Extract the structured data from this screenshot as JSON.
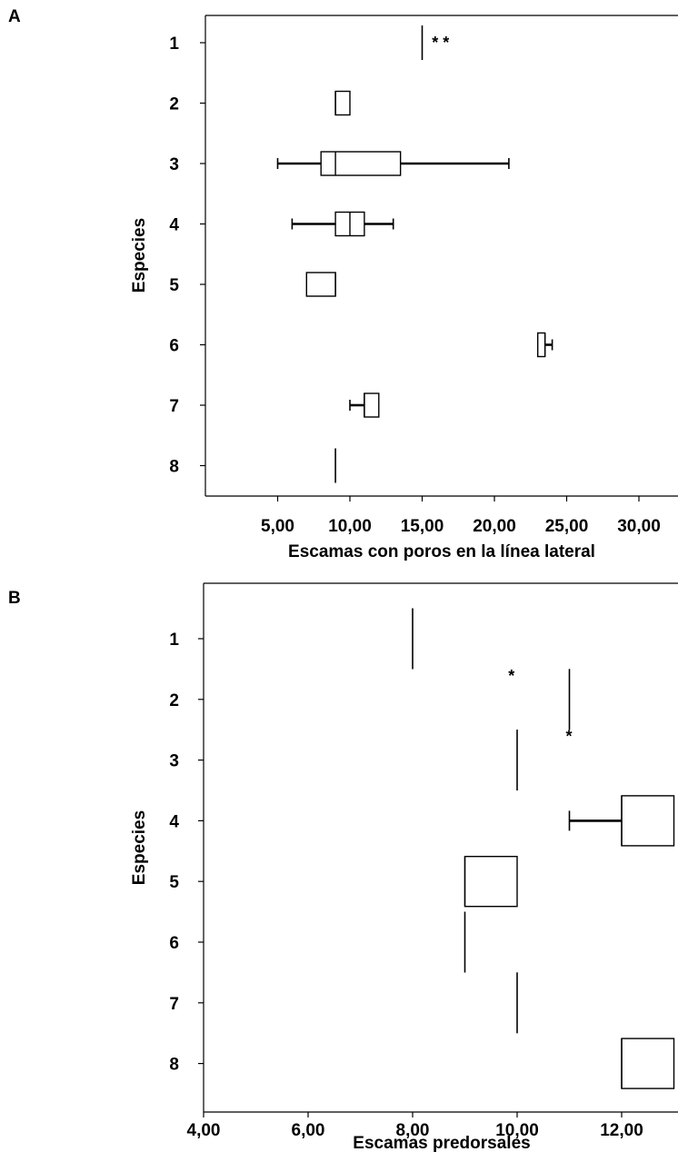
{
  "chart_data": [
    {
      "panel": "A",
      "type": "boxplot",
      "orientation": "horizontal",
      "xlabel": "Escamas con poros en la línea lateral",
      "ylabel": "Especies",
      "categories": [
        "1",
        "2",
        "3",
        "4",
        "5",
        "6",
        "7",
        "8"
      ],
      "x_ticks": [
        "5,00",
        "10,00",
        "15,00",
        "20,00",
        "25,00",
        "30,00"
      ],
      "xlim": [
        0,
        32
      ],
      "boxes": [
        {
          "species": "1",
          "min": 15,
          "q1": 15,
          "median": 15,
          "q3": 15,
          "max": 15
        },
        {
          "species": "2",
          "min": 9,
          "q1": 9,
          "median": 9,
          "q3": 10,
          "max": 10
        },
        {
          "species": "3",
          "min": 5,
          "q1": 8,
          "median": 9,
          "q3": 13.5,
          "max": 21
        },
        {
          "species": "4",
          "min": 6,
          "q1": 9,
          "median": 10,
          "q3": 11,
          "max": 13
        },
        {
          "species": "5",
          "min": 7,
          "q1": 7,
          "median": 9,
          "q3": 9,
          "max": 9
        },
        {
          "species": "6",
          "min": 23,
          "q1": 23,
          "median": 23.5,
          "q3": 23.5,
          "max": 24
        },
        {
          "species": "7",
          "min": 10,
          "q1": 11,
          "median": 11,
          "q3": 12,
          "max": 12
        },
        {
          "species": "8",
          "min": 9,
          "q1": 9,
          "median": 9,
          "q3": 9,
          "max": 9
        }
      ],
      "annotations": [
        {
          "text": "* *",
          "species": "1",
          "x": 15.3
        }
      ]
    },
    {
      "panel": "B",
      "type": "boxplot",
      "orientation": "horizontal",
      "xlabel": "Escamas predorsales",
      "ylabel": "Especies",
      "categories": [
        "1",
        "2",
        "3",
        "4",
        "5",
        "6",
        "7",
        "8"
      ],
      "x_ticks": [
        "4,00",
        "6,00",
        "8,00",
        "10,00",
        "12,00"
      ],
      "xlim": [
        4,
        13
      ],
      "boxes": [
        {
          "species": "1",
          "min": 8,
          "q1": 8,
          "median": 8,
          "q3": 8,
          "max": 8
        },
        {
          "species": "2",
          "min": 11,
          "q1": 11,
          "median": 11,
          "q3": 11,
          "max": 11
        },
        {
          "species": "3",
          "min": 10,
          "q1": 10,
          "median": 10,
          "q3": 10,
          "max": 10
        },
        {
          "species": "4",
          "min": 11,
          "q1": 12,
          "median": 12,
          "q3": 13,
          "max": 13
        },
        {
          "species": "5",
          "min": 9,
          "q1": 9,
          "median": 9,
          "q3": 10,
          "max": 10
        },
        {
          "species": "6",
          "min": 9,
          "q1": 9,
          "median": 9,
          "q3": 9,
          "max": 9
        },
        {
          "species": "7",
          "min": 10,
          "q1": 10,
          "median": 10,
          "q3": 10,
          "max": 10
        },
        {
          "species": "8",
          "min": 12,
          "q1": 12,
          "median": 12,
          "q3": 13,
          "max": 13
        }
      ],
      "annotations": [
        {
          "text": "*",
          "species": "2",
          "x": 9.9,
          "pos": "above"
        },
        {
          "text": "*",
          "species": "3",
          "x": 11,
          "pos": "above"
        }
      ]
    }
  ]
}
